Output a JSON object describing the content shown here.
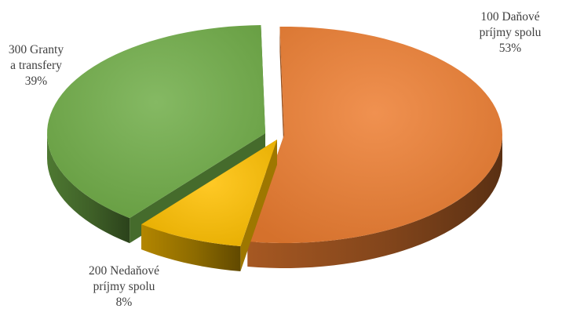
{
  "chart_data": {
    "type": "pie",
    "title": "",
    "slices": [
      {
        "category": "100 Daňové príjmy spolu",
        "label_lines": [
          "100 Daňové",
          "príjmy spolu"
        ],
        "percent_label": "53%",
        "value": 53,
        "color": "#ED7D31"
      },
      {
        "category": "200 Nedaňové príjmy spolu",
        "label_lines": [
          "200 Nedaňové",
          "príjmy spolu"
        ],
        "percent_label": "8%",
        "value": 8,
        "color": "#FFC000"
      },
      {
        "category": "300 Granty a transfery",
        "label_lines": [
          "300 Granty",
          "a transfery"
        ],
        "percent_label": "39%",
        "value": 39,
        "color": "#70AD47"
      }
    ],
    "style": "3d-exploded",
    "legend": "none"
  }
}
